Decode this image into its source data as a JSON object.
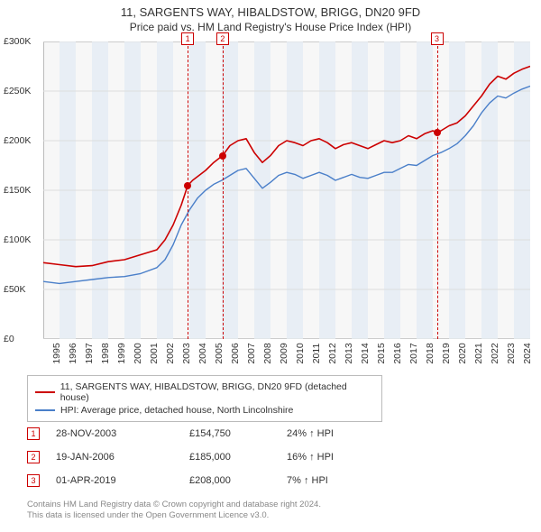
{
  "title": "11, SARGENTS WAY, HIBALDSTOW, BRIGG, DN20 9FD",
  "subtitle": "Price paid vs. HM Land Registry's House Price Index (HPI)",
  "chart": {
    "type": "line",
    "background_color": "#f7f7f7",
    "grid_color": "#dddddd",
    "border_color": "#bbbbbb",
    "band_color": "#e8eef5",
    "xlim": [
      1995,
      2025
    ],
    "ylim": [
      0,
      300000
    ],
    "ytick_step": 50000,
    "yticks": [
      "£0",
      "£50K",
      "£100K",
      "£150K",
      "£200K",
      "£250K",
      "£300K"
    ],
    "xticks": [
      "1995",
      "1996",
      "1997",
      "1998",
      "1999",
      "2000",
      "2001",
      "2002",
      "2003",
      "2004",
      "2005",
      "2006",
      "2007",
      "2008",
      "2009",
      "2010",
      "2011",
      "2012",
      "2013",
      "2014",
      "2015",
      "2016",
      "2017",
      "2018",
      "2019",
      "2020",
      "2021",
      "2022",
      "2023",
      "2024"
    ],
    "series": [
      {
        "name": "property",
        "label": "11, SARGENTS WAY, HIBALDSTOW, BRIGG, DN20 9FD (detached house)",
        "color": "#cc0000",
        "line_width": 1.6,
        "points": [
          [
            1995,
            77000
          ],
          [
            1996,
            75000
          ],
          [
            1997,
            73000
          ],
          [
            1998,
            74000
          ],
          [
            1999,
            78000
          ],
          [
            2000,
            80000
          ],
          [
            2001,
            85000
          ],
          [
            2002,
            90000
          ],
          [
            2002.5,
            100000
          ],
          [
            2003,
            115000
          ],
          [
            2003.5,
            135000
          ],
          [
            2003.9,
            154750
          ],
          [
            2004.2,
            160000
          ],
          [
            2005,
            170000
          ],
          [
            2005.5,
            178000
          ],
          [
            2006.05,
            185000
          ],
          [
            2006.5,
            195000
          ],
          [
            2007,
            200000
          ],
          [
            2007.5,
            202000
          ],
          [
            2008,
            188000
          ],
          [
            2008.5,
            178000
          ],
          [
            2009,
            185000
          ],
          [
            2009.5,
            195000
          ],
          [
            2010,
            200000
          ],
          [
            2010.5,
            198000
          ],
          [
            2011,
            195000
          ],
          [
            2011.5,
            200000
          ],
          [
            2012,
            202000
          ],
          [
            2012.5,
            198000
          ],
          [
            2013,
            192000
          ],
          [
            2013.5,
            196000
          ],
          [
            2014,
            198000
          ],
          [
            2014.5,
            195000
          ],
          [
            2015,
            192000
          ],
          [
            2015.5,
            196000
          ],
          [
            2016,
            200000
          ],
          [
            2016.5,
            198000
          ],
          [
            2017,
            200000
          ],
          [
            2017.5,
            205000
          ],
          [
            2018,
            202000
          ],
          [
            2018.5,
            207000
          ],
          [
            2019,
            210000
          ],
          [
            2019.25,
            208000
          ],
          [
            2019.5,
            210000
          ],
          [
            2020,
            215000
          ],
          [
            2020.5,
            218000
          ],
          [
            2021,
            225000
          ],
          [
            2021.5,
            235000
          ],
          [
            2022,
            245000
          ],
          [
            2022.5,
            257000
          ],
          [
            2023,
            265000
          ],
          [
            2023.5,
            262000
          ],
          [
            2024,
            268000
          ],
          [
            2024.5,
            272000
          ],
          [
            2025,
            275000
          ]
        ]
      },
      {
        "name": "hpi",
        "label": "HPI: Average price, detached house, North Lincolnshire",
        "color": "#4a7fc9",
        "line_width": 1.4,
        "points": [
          [
            1995,
            58000
          ],
          [
            1996,
            56000
          ],
          [
            1997,
            58000
          ],
          [
            1998,
            60000
          ],
          [
            1999,
            62000
          ],
          [
            2000,
            63000
          ],
          [
            2001,
            66000
          ],
          [
            2002,
            72000
          ],
          [
            2002.5,
            80000
          ],
          [
            2003,
            95000
          ],
          [
            2003.5,
            115000
          ],
          [
            2004,
            130000
          ],
          [
            2004.5,
            142000
          ],
          [
            2005,
            150000
          ],
          [
            2005.5,
            156000
          ],
          [
            2006,
            160000
          ],
          [
            2006.5,
            165000
          ],
          [
            2007,
            170000
          ],
          [
            2007.5,
            172000
          ],
          [
            2008,
            162000
          ],
          [
            2008.5,
            152000
          ],
          [
            2009,
            158000
          ],
          [
            2009.5,
            165000
          ],
          [
            2010,
            168000
          ],
          [
            2010.5,
            166000
          ],
          [
            2011,
            162000
          ],
          [
            2011.5,
            165000
          ],
          [
            2012,
            168000
          ],
          [
            2012.5,
            165000
          ],
          [
            2013,
            160000
          ],
          [
            2013.5,
            163000
          ],
          [
            2014,
            166000
          ],
          [
            2014.5,
            163000
          ],
          [
            2015,
            162000
          ],
          [
            2015.5,
            165000
          ],
          [
            2016,
            168000
          ],
          [
            2016.5,
            168000
          ],
          [
            2017,
            172000
          ],
          [
            2017.5,
            176000
          ],
          [
            2018,
            175000
          ],
          [
            2018.5,
            180000
          ],
          [
            2019,
            185000
          ],
          [
            2019.5,
            188000
          ],
          [
            2020,
            192000
          ],
          [
            2020.5,
            197000
          ],
          [
            2021,
            205000
          ],
          [
            2021.5,
            215000
          ],
          [
            2022,
            228000
          ],
          [
            2022.5,
            238000
          ],
          [
            2023,
            245000
          ],
          [
            2023.5,
            243000
          ],
          [
            2024,
            248000
          ],
          [
            2024.5,
            252000
          ],
          [
            2025,
            255000
          ]
        ]
      }
    ],
    "markers": [
      {
        "id": "1",
        "x": 2003.9,
        "y": 154750,
        "date": "28-NOV-2003",
        "price": "£154,750",
        "pct": "24% ↑ HPI"
      },
      {
        "id": "2",
        "x": 2006.05,
        "y": 185000,
        "date": "19-JAN-2006",
        "price": "£185,000",
        "pct": "16% ↑ HPI"
      },
      {
        "id": "3",
        "x": 2019.25,
        "y": 208000,
        "date": "01-APR-2019",
        "price": "£208,000",
        "pct": "7% ↑ HPI"
      }
    ]
  },
  "legend_title_1": "11, SARGENTS WAY, HIBALDSTOW, BRIGG, DN20 9FD (detached house)",
  "legend_title_2": "HPI: Average price, detached house, North Lincolnshire",
  "footer_line1": "Contains HM Land Registry data © Crown copyright and database right 2024.",
  "footer_line2": "This data is licensed under the Open Government Licence v3.0."
}
